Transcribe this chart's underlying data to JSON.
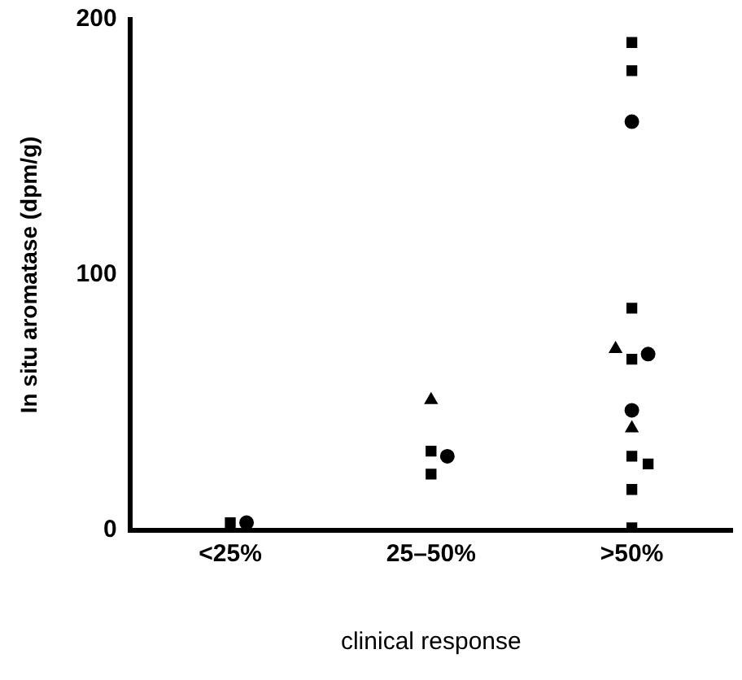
{
  "chart_data": {
    "type": "scatter",
    "xlabel": "clinical response",
    "ylabel": "In situ aromatase (dpm/g)",
    "categories": [
      "<25%",
      "25–50%",
      ">50%"
    ],
    "ylim": [
      0,
      200
    ],
    "yticks": [
      0,
      100,
      200
    ],
    "grid": false,
    "legend": false,
    "series": [
      {
        "marker": "square",
        "color": "#000000",
        "x": [
          "<25%",
          "25–50%",
          "25–50%",
          ">50%",
          ">50%",
          ">50%",
          ">50%",
          ">50%",
          ">50%",
          ">50%",
          ">50%"
        ],
        "values": [
          3,
          31,
          22,
          191,
          180,
          87,
          67,
          29,
          26,
          16,
          1
        ]
      },
      {
        "marker": "circle",
        "color": "#000000",
        "x": [
          "<25%",
          "25–50%",
          ">50%",
          ">50%",
          ">50%"
        ],
        "values": [
          3,
          29,
          160,
          69,
          47
        ]
      },
      {
        "marker": "triangle",
        "color": "#000000",
        "x": [
          "25–50%",
          ">50%",
          ">50%"
        ],
        "values": [
          51,
          71,
          40
        ]
      }
    ]
  }
}
